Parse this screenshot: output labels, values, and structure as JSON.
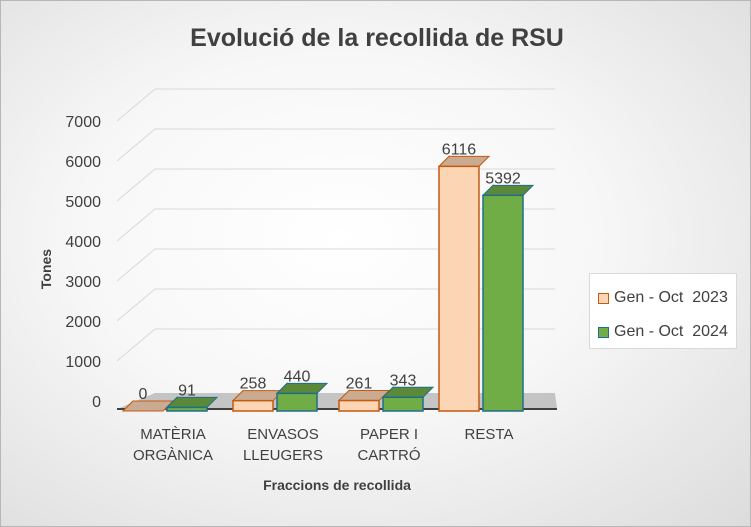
{
  "chart_data": {
    "type": "bar",
    "title": "Evolució de la recollida de RSU",
    "xlabel": "Fraccions de recollida",
    "ylabel": "Tones",
    "categories": [
      [
        "MATÈRIA",
        "ORGÀNICA"
      ],
      [
        "ENVASOS",
        "LLEUGERS"
      ],
      [
        "PAPER I",
        "CARTRÓ"
      ],
      [
        "RESTA"
      ]
    ],
    "series": [
      {
        "name": "Gen - Oct  2023",
        "values": [
          0,
          258,
          261,
          6116
        ],
        "color": "#fcd5b4",
        "edge_color": "#c55a11"
      },
      {
        "name": "Gen - Oct  2024",
        "values": [
          91,
          440,
          343,
          5392
        ],
        "color": "#70ad47",
        "edge_color": "#1f6e8c"
      }
    ],
    "ylim": [
      0,
      7000
    ],
    "yticks": [
      0,
      1000,
      2000,
      3000,
      4000,
      5000,
      6000,
      7000
    ],
    "grid": true,
    "legend_position": "right",
    "style": "3d-clustered-column"
  }
}
